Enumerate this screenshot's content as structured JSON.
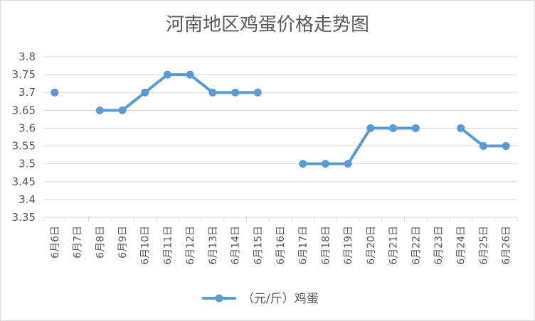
{
  "chart_data": {
    "type": "line",
    "title": "河南地区鸡蛋价格走势图",
    "categories": [
      "6月6日",
      "6月7日",
      "6月8日",
      "6月9日",
      "6月10日",
      "6月11日",
      "6月12日",
      "6月13日",
      "6月14日",
      "6月15日",
      "6月16日",
      "6月17日",
      "6月18日",
      "6月19日",
      "6月20日",
      "6月21日",
      "6月22日",
      "6月23日",
      "6月24日",
      "6月25日",
      "6月26日"
    ],
    "series": [
      {
        "name": "（元/斤）鸡蛋",
        "values": [
          3.7,
          null,
          3.65,
          3.65,
          3.7,
          3.75,
          3.75,
          3.7,
          3.7,
          3.7,
          null,
          3.5,
          3.5,
          3.5,
          3.6,
          3.6,
          3.6,
          null,
          3.6,
          3.55,
          3.55
        ]
      }
    ],
    "yticks": [
      "3.35",
      "3.4",
      "3.45",
      "3.5",
      "3.55",
      "3.6",
      "3.65",
      "3.7",
      "3.75",
      "3.8"
    ],
    "ylim": [
      3.35,
      3.8
    ],
    "xlabel": "",
    "ylabel": "",
    "grid": true,
    "legend_position": "bottom",
    "line_color": "#5b9bd5",
    "grid_color": "#d9d9d9",
    "text_color": "#595959"
  }
}
